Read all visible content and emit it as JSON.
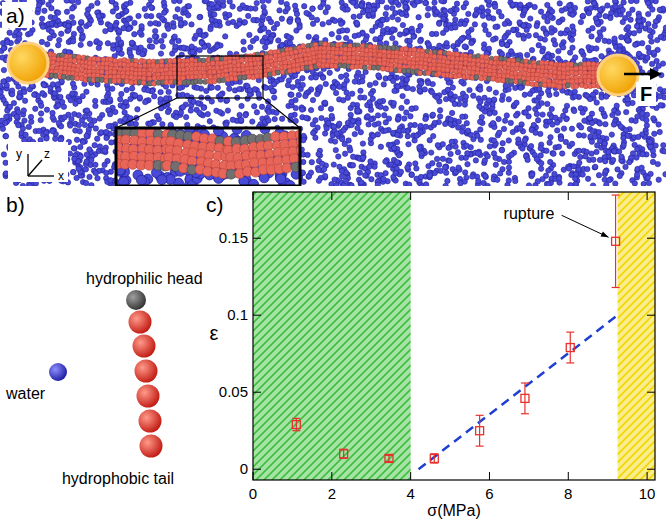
{
  "panel_labels": [
    "a)",
    "b)",
    "c)"
  ],
  "snapshot": {
    "force_label": "F",
    "axis_labels": [
      "x",
      "y",
      "z"
    ]
  },
  "molecule": {
    "head_label": "hydrophilic head",
    "water_label": "water",
    "tail_label": "hydrophobic tail"
  },
  "chart_data": {
    "type": "scatter",
    "xlabel": "σ(MPa)",
    "ylabel": "ε",
    "x": [
      1.1,
      2.3,
      3.45,
      4.6,
      5.75,
      6.9,
      8.05,
      9.2
    ],
    "values": [
      0.029,
      0.01,
      0.007,
      0.007,
      0.025,
      0.046,
      0.079,
      0.148
    ],
    "errors": [
      0.004,
      0.003,
      0.002,
      0.003,
      0.01,
      0.01,
      0.01,
      0.03
    ],
    "color": "#e8312d",
    "marker": "square",
    "xlim": [
      0,
      10.2
    ],
    "ylim": [
      -0.007,
      0.18
    ],
    "xticks": [
      0,
      2,
      4,
      6,
      8,
      10
    ],
    "yticks": [
      0,
      0.05,
      0.1,
      0.15
    ],
    "fit": {
      "x": [
        4.2,
        9.2
      ],
      "values": [
        0,
        0.099
      ],
      "color": "#1f3fd0",
      "line_style": "dashed"
    },
    "regions": [
      {
        "x": [
          0,
          4
        ],
        "color": "#3cc03c"
      },
      {
        "x": [
          9.25,
          10.2
        ],
        "color": "#f2d600"
      }
    ],
    "annotations": [
      {
        "text": "rupture",
        "x": 9.2,
        "y": 0.148
      }
    ]
  }
}
